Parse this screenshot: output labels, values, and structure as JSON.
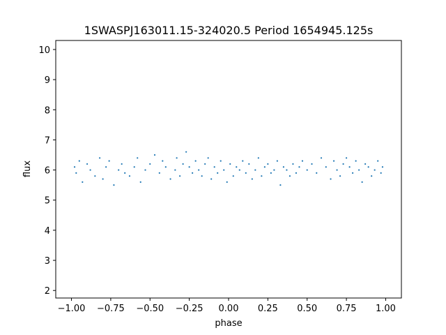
{
  "chart_data": {
    "type": "scatter",
    "title": "1SWASPJ163011.15-324020.5 Period 1654945.125s",
    "xlabel": "phase",
    "ylabel": "flux",
    "xlim": [
      -1.1,
      1.1
    ],
    "ylim": [
      1.75,
      10.3
    ],
    "xticks": [
      -1.0,
      -0.75,
      -0.5,
      -0.25,
      0.0,
      0.25,
      0.5,
      0.75,
      1.0
    ],
    "xtick_labels": [
      "−1.00",
      "−0.75",
      "−0.50",
      "−0.25",
      "0.00",
      "0.25",
      "0.50",
      "0.75",
      "1.00"
    ],
    "yticks": [
      2,
      3,
      4,
      5,
      6,
      7,
      8,
      9,
      10
    ],
    "ytick_labels": [
      "2",
      "3",
      "4",
      "5",
      "6",
      "7",
      "8",
      "9",
      "10"
    ],
    "grid": false,
    "marker_color": "#1f77b4",
    "series": [
      {
        "x": [
          -0.98,
          -0.97,
          -0.95,
          -0.93,
          -0.9,
          -0.88,
          -0.85,
          -0.82,
          -0.8,
          -0.78,
          -0.76,
          -0.73,
          -0.7,
          -0.68,
          -0.66,
          -0.63,
          -0.6,
          -0.58,
          -0.56,
          -0.53,
          -0.5,
          -0.47,
          -0.44,
          -0.42,
          -0.4,
          -0.37,
          -0.34,
          -0.33,
          -0.31,
          -0.29,
          -0.27,
          -0.25,
          -0.23,
          -0.21,
          -0.19,
          -0.17,
          -0.15,
          -0.13,
          -0.11,
          -0.09,
          -0.07,
          -0.05,
          -0.03,
          -0.01,
          0.01,
          0.03,
          0.05,
          0.07,
          0.09,
          0.11,
          0.13,
          0.15,
          0.17,
          0.19,
          0.21,
          0.23,
          0.25,
          0.27,
          0.29,
          0.31,
          0.33,
          0.35,
          0.37,
          0.39,
          0.41,
          0.43,
          0.45,
          0.47,
          0.5,
          0.53,
          0.56,
          0.59,
          0.62,
          0.65,
          0.67,
          0.69,
          0.71,
          0.73,
          0.75,
          0.77,
          0.79,
          0.81,
          0.83,
          0.85,
          0.87,
          0.89,
          0.91,
          0.93,
          0.95,
          0.97,
          0.98
        ],
        "y": [
          6.1,
          5.9,
          6.3,
          5.6,
          6.2,
          6.0,
          5.8,
          6.4,
          5.7,
          6.1,
          6.3,
          5.5,
          6.0,
          6.2,
          5.9,
          5.8,
          6.1,
          6.4,
          5.6,
          6.0,
          6.2,
          6.5,
          5.9,
          6.3,
          6.1,
          5.7,
          6.0,
          6.4,
          5.8,
          6.2,
          6.6,
          6.1,
          5.9,
          6.3,
          6.0,
          5.8,
          6.2,
          6.4,
          5.7,
          6.1,
          5.9,
          6.3,
          6.0,
          5.6,
          6.2,
          5.8,
          6.1,
          6.0,
          6.3,
          5.9,
          6.2,
          5.7,
          6.0,
          6.4,
          5.8,
          6.1,
          6.2,
          5.9,
          6.0,
          6.3,
          5.5,
          6.1,
          6.0,
          5.8,
          6.2,
          5.9,
          6.1,
          6.3,
          6.0,
          6.2,
          5.9,
          6.4,
          6.1,
          5.7,
          6.3,
          6.0,
          5.8,
          6.2,
          6.4,
          6.1,
          5.9,
          6.3,
          6.0,
          5.6,
          6.2,
          6.1,
          5.8,
          6.0,
          6.3,
          5.9,
          6.1
        ]
      }
    ]
  }
}
